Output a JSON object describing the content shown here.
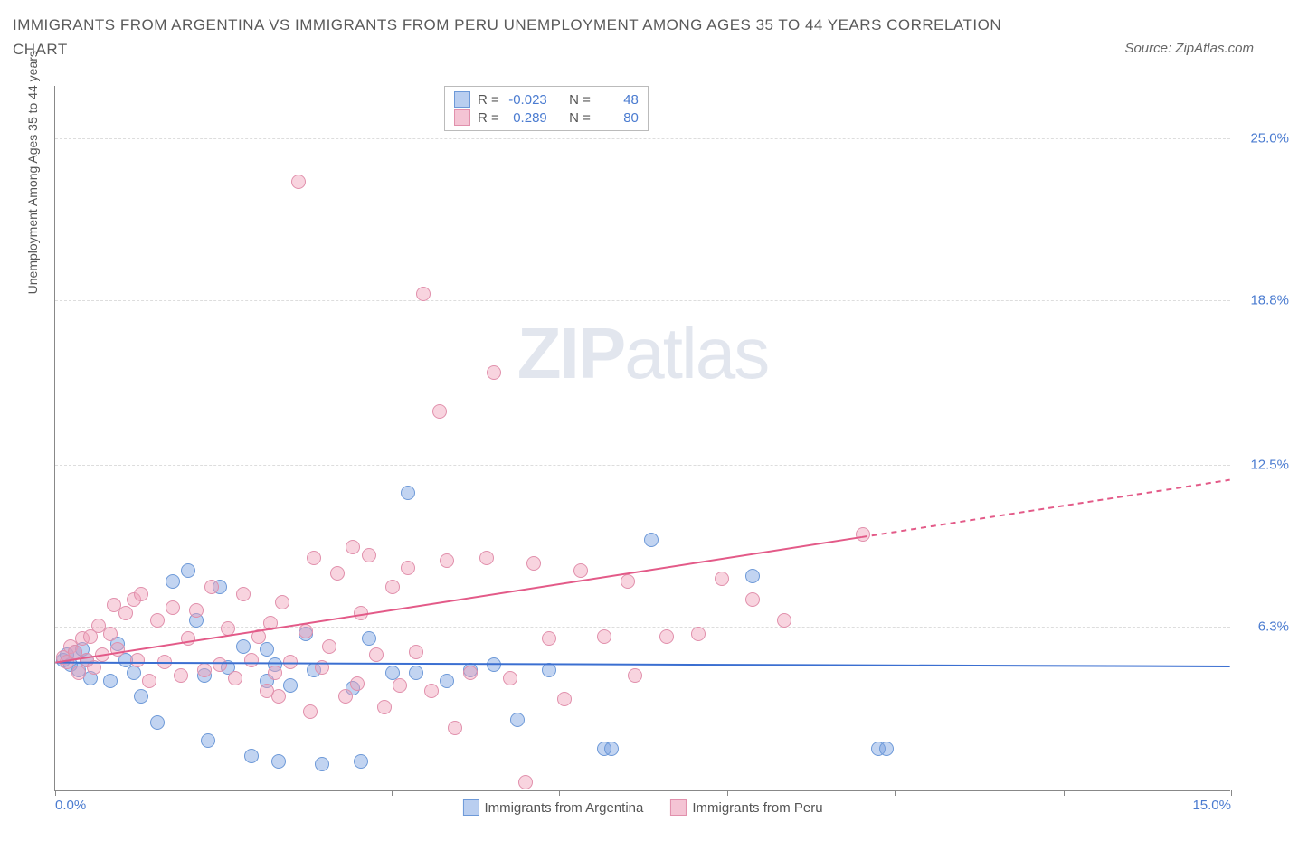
{
  "title": "IMMIGRANTS FROM ARGENTINA VS IMMIGRANTS FROM PERU UNEMPLOYMENT AMONG AGES 35 TO 44 YEARS CORRELATION CHART",
  "source": "Source: ZipAtlas.com",
  "watermark_bold": "ZIP",
  "watermark_light": "atlas",
  "chart": {
    "type": "scatter",
    "y_axis_label": "Unemployment Among Ages 35 to 44 years",
    "xlim": [
      0,
      15
    ],
    "ylim": [
      0,
      27
    ],
    "x_ticks": [
      0,
      2.14,
      4.29,
      6.43,
      8.57,
      10.71,
      12.86,
      15
    ],
    "x_tick_labels": {
      "0": "0.0%",
      "15": "15.0%"
    },
    "y_gridlines": [
      6.3,
      12.5,
      18.8,
      25.0
    ],
    "y_tick_labels": [
      "6.3%",
      "12.5%",
      "18.8%",
      "25.0%"
    ],
    "background_color": "#ffffff",
    "grid_color": "#dddddd",
    "axis_color": "#888888",
    "tick_label_color": "#4a7bd0",
    "marker_radius": 8,
    "marker_opacity": 0.55,
    "series": [
      {
        "name": "Immigrants from Argentina",
        "color_fill": "rgba(120,160,225,0.45)",
        "color_stroke": "#6d99d8",
        "swatch_fill": "#b9cef0",
        "swatch_border": "#6d99d8",
        "R": "-0.023",
        "N": "48",
        "trend": {
          "y_start": 4.9,
          "y_end": 4.75,
          "x_solid_end": 15.0,
          "color": "#3b6fd1",
          "width": 2
        },
        "points": [
          [
            0.1,
            5.0
          ],
          [
            0.15,
            5.2
          ],
          [
            0.2,
            4.8
          ],
          [
            0.25,
            5.3
          ],
          [
            0.3,
            4.6
          ],
          [
            0.35,
            5.4
          ],
          [
            0.4,
            5.0
          ],
          [
            0.45,
            4.3
          ],
          [
            0.7,
            4.2
          ],
          [
            0.8,
            5.6
          ],
          [
            0.9,
            5.0
          ],
          [
            1.0,
            4.5
          ],
          [
            1.1,
            3.6
          ],
          [
            1.3,
            2.6
          ],
          [
            1.5,
            8.0
          ],
          [
            1.7,
            8.4
          ],
          [
            1.8,
            6.5
          ],
          [
            1.9,
            4.4
          ],
          [
            1.95,
            1.9
          ],
          [
            2.1,
            7.8
          ],
          [
            2.2,
            4.7
          ],
          [
            2.4,
            5.5
          ],
          [
            2.5,
            1.3
          ],
          [
            2.7,
            4.2
          ],
          [
            2.7,
            5.4
          ],
          [
            2.8,
            4.8
          ],
          [
            2.85,
            1.1
          ],
          [
            3.0,
            4.0
          ],
          [
            3.2,
            6.0
          ],
          [
            3.3,
            4.6
          ],
          [
            3.4,
            1.0
          ],
          [
            3.8,
            3.9
          ],
          [
            3.9,
            1.1
          ],
          [
            4.0,
            5.8
          ],
          [
            4.3,
            4.5
          ],
          [
            4.5,
            11.4
          ],
          [
            4.6,
            4.5
          ],
          [
            5.0,
            4.2
          ],
          [
            5.3,
            4.6
          ],
          [
            5.6,
            4.8
          ],
          [
            5.9,
            2.7
          ],
          [
            6.3,
            4.6
          ],
          [
            7.0,
            1.6
          ],
          [
            7.1,
            1.6
          ],
          [
            7.6,
            9.6
          ],
          [
            8.9,
            8.2
          ],
          [
            10.5,
            1.6
          ],
          [
            10.6,
            1.6
          ]
        ]
      },
      {
        "name": "Immigrants from Peru",
        "color_fill": "rgba(240,160,185,0.45)",
        "color_stroke": "#e190ac",
        "swatch_fill": "#f4c4d4",
        "swatch_border": "#e190ac",
        "R": "0.289",
        "N": "80",
        "trend": {
          "y_start": 4.9,
          "y_end": 11.9,
          "x_solid_end": 10.3,
          "color": "#e35a88",
          "width": 2
        },
        "points": [
          [
            0.1,
            5.1
          ],
          [
            0.15,
            4.9
          ],
          [
            0.2,
            5.5
          ],
          [
            0.25,
            5.3
          ],
          [
            0.3,
            4.5
          ],
          [
            0.35,
            5.8
          ],
          [
            0.4,
            5.0
          ],
          [
            0.45,
            5.9
          ],
          [
            0.5,
            4.7
          ],
          [
            0.55,
            6.3
          ],
          [
            0.6,
            5.2
          ],
          [
            0.7,
            6.0
          ],
          [
            0.75,
            7.1
          ],
          [
            0.8,
            5.4
          ],
          [
            0.9,
            6.8
          ],
          [
            1.0,
            7.3
          ],
          [
            1.05,
            5.0
          ],
          [
            1.1,
            7.5
          ],
          [
            1.2,
            4.2
          ],
          [
            1.3,
            6.5
          ],
          [
            1.4,
            4.9
          ],
          [
            1.5,
            7.0
          ],
          [
            1.6,
            4.4
          ],
          [
            1.7,
            5.8
          ],
          [
            1.8,
            6.9
          ],
          [
            1.9,
            4.6
          ],
          [
            2.0,
            7.8
          ],
          [
            2.1,
            4.8
          ],
          [
            2.2,
            6.2
          ],
          [
            2.3,
            4.3
          ],
          [
            2.4,
            7.5
          ],
          [
            2.5,
            5.0
          ],
          [
            2.6,
            5.9
          ],
          [
            2.7,
            3.8
          ],
          [
            2.75,
            6.4
          ],
          [
            2.8,
            4.5
          ],
          [
            2.85,
            3.6
          ],
          [
            2.9,
            7.2
          ],
          [
            3.0,
            4.9
          ],
          [
            3.1,
            23.3
          ],
          [
            3.2,
            6.1
          ],
          [
            3.25,
            3.0
          ],
          [
            3.3,
            8.9
          ],
          [
            3.4,
            4.7
          ],
          [
            3.5,
            5.5
          ],
          [
            3.6,
            8.3
          ],
          [
            3.7,
            3.6
          ],
          [
            3.8,
            9.3
          ],
          [
            3.85,
            4.1
          ],
          [
            3.9,
            6.8
          ],
          [
            4.0,
            9.0
          ],
          [
            4.1,
            5.2
          ],
          [
            4.2,
            3.2
          ],
          [
            4.3,
            7.8
          ],
          [
            4.4,
            4.0
          ],
          [
            4.5,
            8.5
          ],
          [
            4.6,
            5.3
          ],
          [
            4.7,
            19.0
          ],
          [
            4.8,
            3.8
          ],
          [
            4.9,
            14.5
          ],
          [
            5.0,
            8.8
          ],
          [
            5.1,
            2.4
          ],
          [
            5.3,
            4.5
          ],
          [
            5.5,
            8.9
          ],
          [
            5.6,
            16.0
          ],
          [
            5.8,
            4.3
          ],
          [
            6.0,
            0.3
          ],
          [
            6.1,
            8.7
          ],
          [
            6.3,
            5.8
          ],
          [
            6.5,
            3.5
          ],
          [
            6.7,
            8.4
          ],
          [
            7.0,
            5.9
          ],
          [
            7.3,
            8.0
          ],
          [
            7.4,
            4.4
          ],
          [
            7.8,
            5.9
          ],
          [
            8.2,
            6.0
          ],
          [
            8.5,
            8.1
          ],
          [
            8.9,
            7.3
          ],
          [
            9.3,
            6.5
          ],
          [
            10.3,
            9.8
          ]
        ]
      }
    ],
    "stats_labels": {
      "R": "R =",
      "N": "N ="
    }
  }
}
